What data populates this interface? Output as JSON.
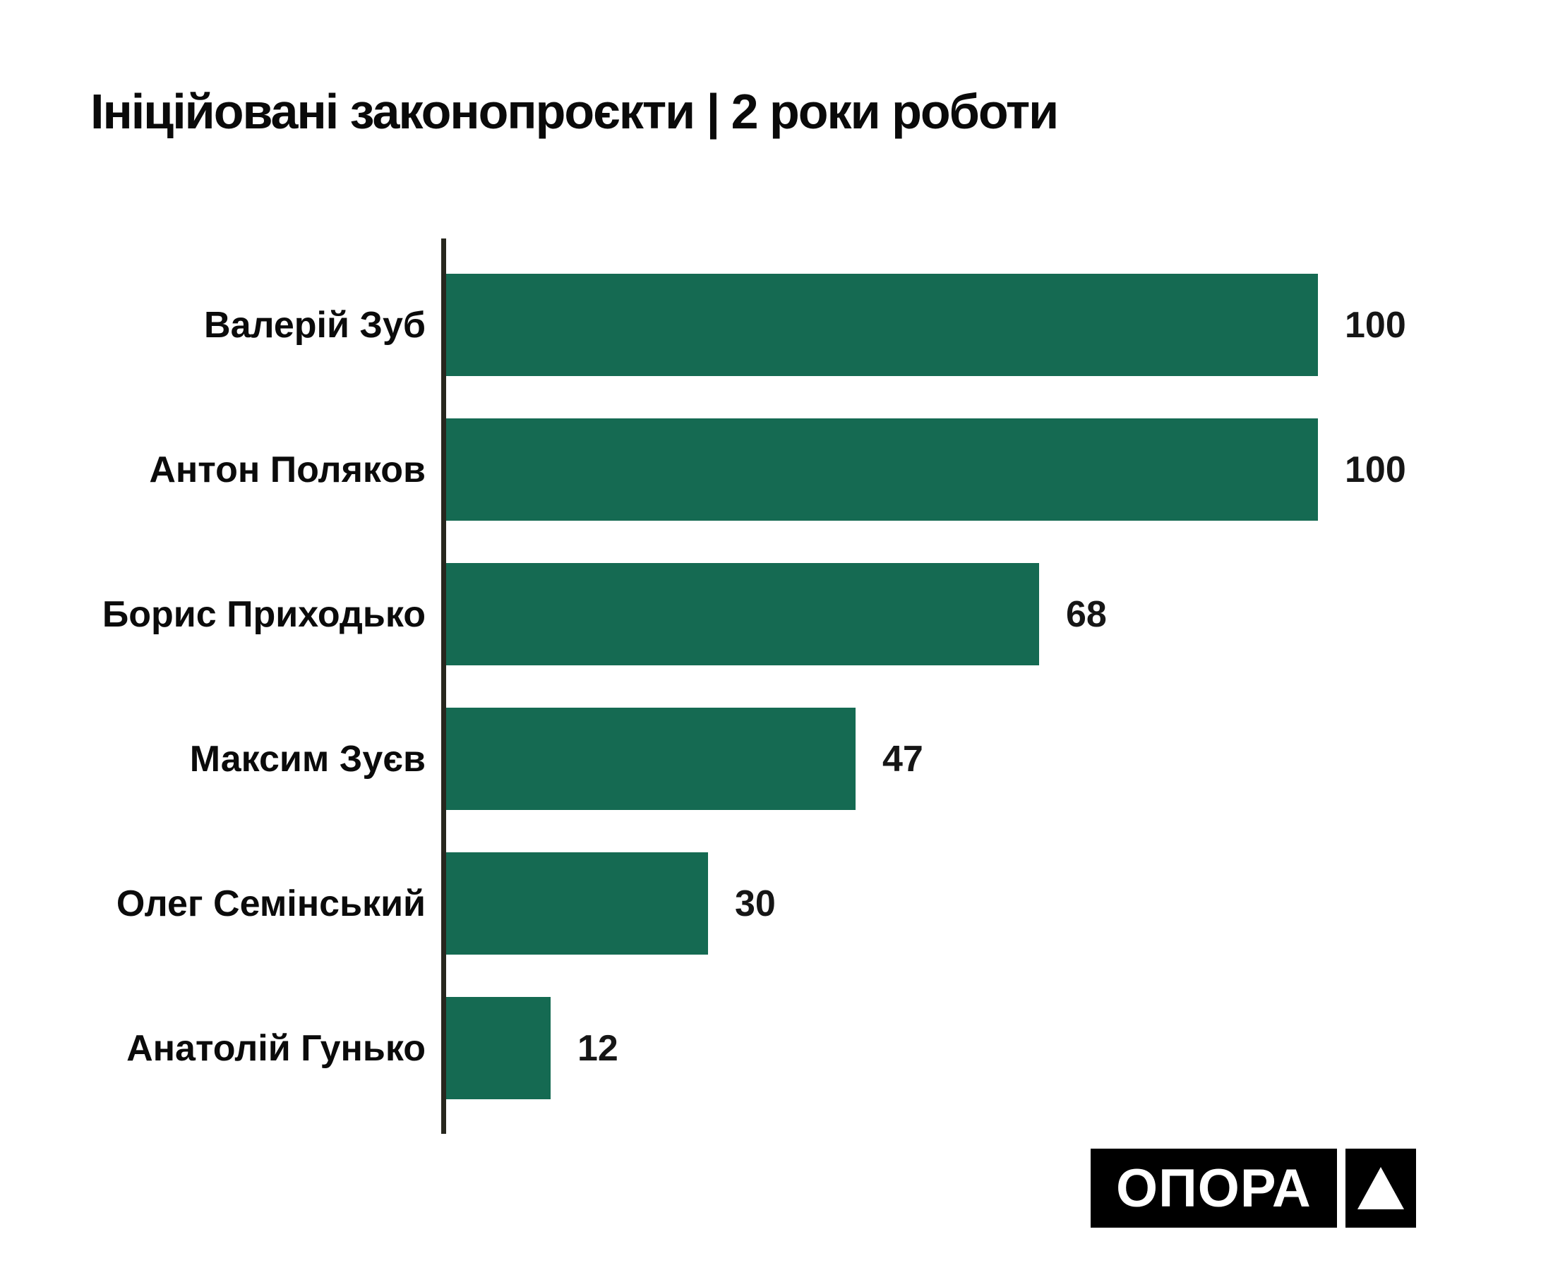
{
  "page": {
    "background": "#ffffff"
  },
  "chart_data": {
    "type": "bar",
    "orientation": "horizontal",
    "title": "Ініційовані законопроєкти | 2 роки роботи",
    "categories": [
      "Валерій Зуб",
      "Антон Поляков",
      "Борис Приходько",
      "Максим Зуєв",
      "Олег Семінський",
      "Анатолій Гунько"
    ],
    "values": [
      100,
      100,
      68,
      47,
      30,
      12
    ],
    "xlim": [
      0,
      100
    ],
    "value_labels_shown": true,
    "grid": false,
    "legend": false,
    "bar_color": "#156a52",
    "axis_color": "#27271e",
    "label_color": "#0b0b0b",
    "value_label_color": "#161616"
  },
  "logo": {
    "text": "ОПОРА",
    "background": "#000000",
    "text_color": "#ffffff",
    "triangle_icon_color": "#ffffff"
  }
}
